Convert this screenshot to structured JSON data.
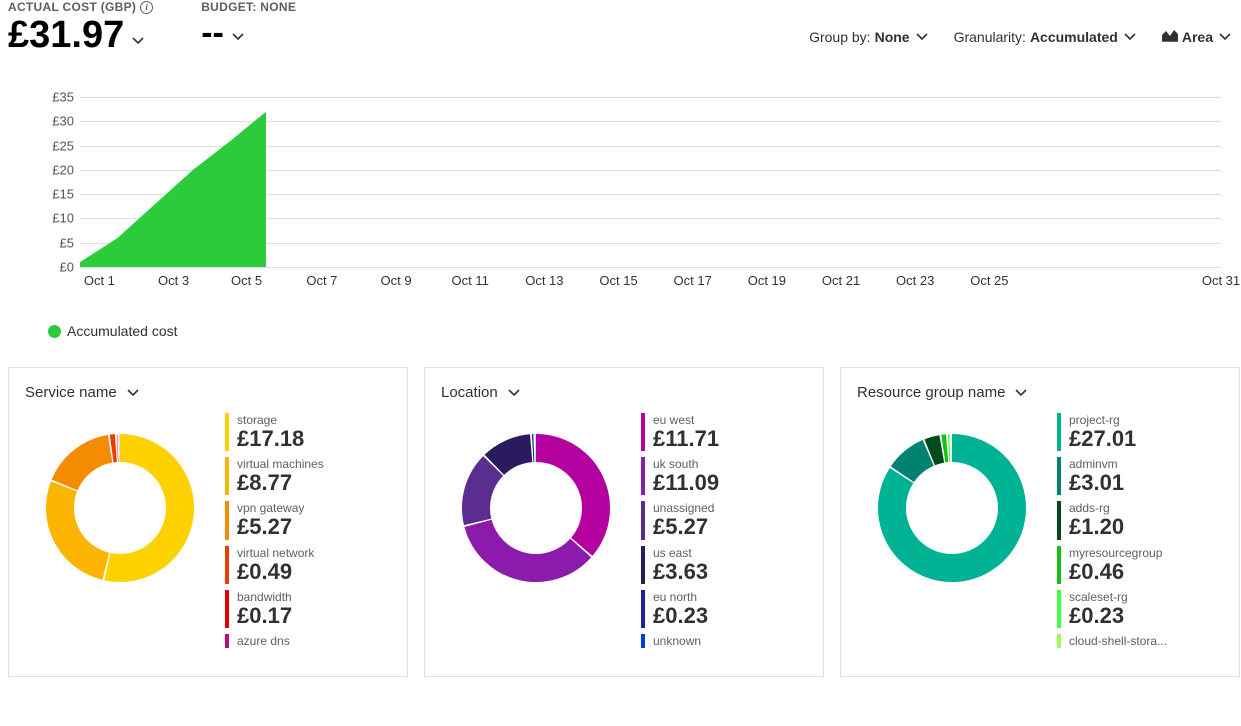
{
  "header": {
    "actual_cost_label": "ACTUAL COST (GBP)",
    "actual_cost_value": "£31.97",
    "budget_label": "BUDGET: NONE",
    "budget_value": "--"
  },
  "controls": {
    "group_by_label": "Group by:",
    "group_by_value": "None",
    "granularity_label": "Granularity:",
    "granularity_value": "Accumulated",
    "chart_type_value": "Area"
  },
  "area_chart": {
    "type": "area",
    "y_ticks": [
      "£0",
      "£5",
      "£10",
      "£15",
      "£20",
      "£25",
      "£30",
      "£35"
    ],
    "y_max": 35,
    "x_ticks": [
      {
        "label": "Oct 1",
        "pos": 0.017
      },
      {
        "label": "Oct 3",
        "pos": 0.082
      },
      {
        "label": "Oct 5",
        "pos": 0.146
      },
      {
        "label": "Oct 7",
        "pos": 0.212
      },
      {
        "label": "Oct 9",
        "pos": 0.277
      },
      {
        "label": "Oct 11",
        "pos": 0.342
      },
      {
        "label": "Oct 13",
        "pos": 0.407
      },
      {
        "label": "Oct 15",
        "pos": 0.472
      },
      {
        "label": "Oct 17",
        "pos": 0.537
      },
      {
        "label": "Oct 19",
        "pos": 0.602
      },
      {
        "label": "Oct 21",
        "pos": 0.667
      },
      {
        "label": "Oct 23",
        "pos": 0.732
      },
      {
        "label": "Oct 25",
        "pos": 0.797
      },
      {
        "label": "Oct 31",
        "pos": 1.0
      }
    ],
    "series_color": "#2bcb3b",
    "grid_color": "#e1dfdd",
    "points": [
      {
        "x": 0.0,
        "y": 1
      },
      {
        "x": 0.033,
        "y": 6
      },
      {
        "x": 0.066,
        "y": 13
      },
      {
        "x": 0.099,
        "y": 20
      },
      {
        "x": 0.132,
        "y": 26
      },
      {
        "x": 0.163,
        "y": 31.97
      }
    ],
    "legend_label": "Accumulated cost"
  },
  "cards": [
    {
      "title": "Service name",
      "donut_stroke": 28,
      "items": [
        {
          "label": "storage",
          "value": "£17.18",
          "num": 17.18,
          "color": "#fdd200"
        },
        {
          "label": "virtual machines",
          "value": "£8.77",
          "num": 8.77,
          "color": "#fbb400"
        },
        {
          "label": "vpn gateway",
          "value": "£5.27",
          "num": 5.27,
          "color": "#f48c00"
        },
        {
          "label": "virtual network",
          "value": "£0.49",
          "num": 0.49,
          "color": "#e83e00"
        },
        {
          "label": "bandwidth",
          "value": "£0.17",
          "num": 0.17,
          "color": "#e60000"
        },
        {
          "label": "azure dns",
          "value": "",
          "num": 0.05,
          "color": "#c40d69"
        }
      ]
    },
    {
      "title": "Location",
      "donut_stroke": 28,
      "items": [
        {
          "label": "eu west",
          "value": "£11.71",
          "num": 11.71,
          "color": "#b4009e"
        },
        {
          "label": "uk south",
          "value": "£11.09",
          "num": 11.09,
          "color": "#8c1aab"
        },
        {
          "label": "unassigned",
          "value": "£5.27",
          "num": 5.27,
          "color": "#5c2d91"
        },
        {
          "label": "us east",
          "value": "£3.63",
          "num": 3.63,
          "color": "#2a1a5e"
        },
        {
          "label": "eu north",
          "value": "£0.23",
          "num": 0.23,
          "color": "#1b2199"
        },
        {
          "label": "unknown",
          "value": "",
          "num": 0.05,
          "color": "#0433ff"
        }
      ]
    },
    {
      "title": "Resource group name",
      "donut_stroke": 28,
      "items": [
        {
          "label": "project-rg",
          "value": "£27.01",
          "num": 27.01,
          "color": "#00b294"
        },
        {
          "label": "adminvm",
          "value": "£3.01",
          "num": 3.01,
          "color": "#008272"
        },
        {
          "label": "adds-rg",
          "value": "£1.20",
          "num": 1.2,
          "color": "#004b1c"
        },
        {
          "label": "myresourcegroup",
          "value": "£0.46",
          "num": 0.46,
          "color": "#17c017"
        },
        {
          "label": "scaleset-rg",
          "value": "£0.23",
          "num": 0.23,
          "color": "#3fff3f"
        },
        {
          "label": "cloud-shell-stora...",
          "value": "",
          "num": 0.05,
          "color": "#9bff4f"
        }
      ]
    }
  ]
}
